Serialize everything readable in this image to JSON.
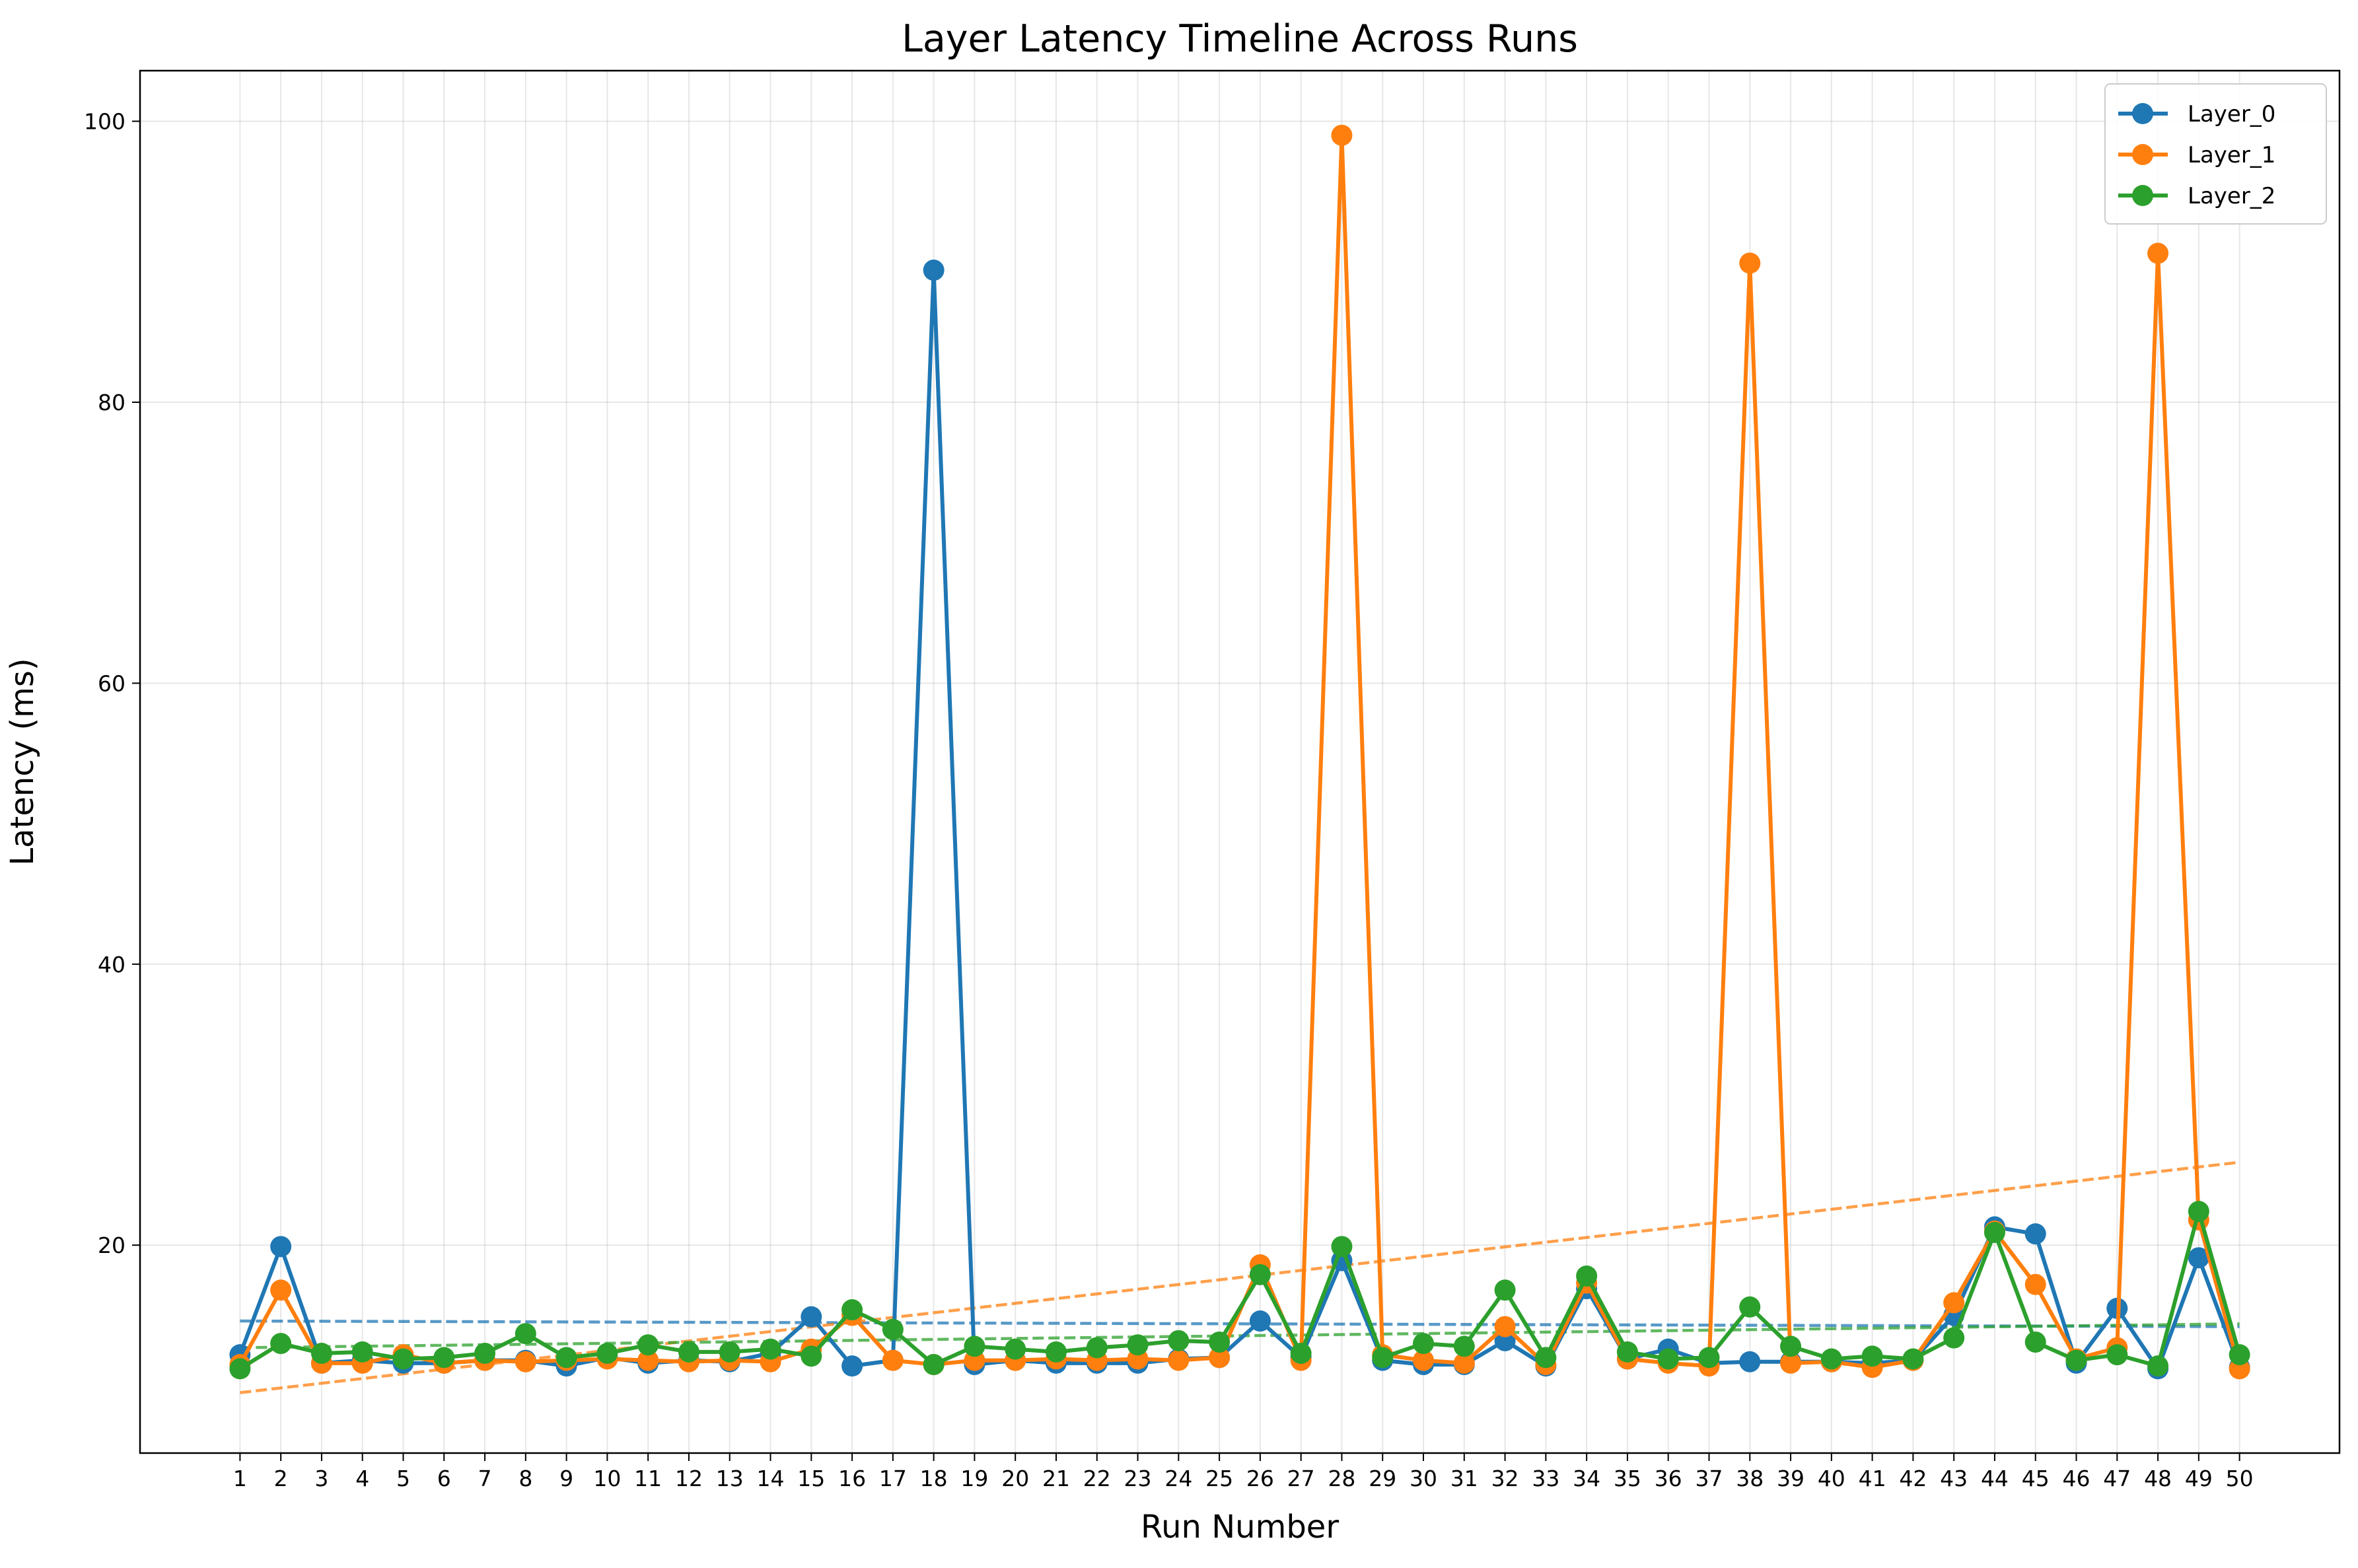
{
  "chart_data": {
    "type": "line",
    "title": "Layer Latency Timeline Across Runs",
    "xlabel": "Run Number",
    "ylabel": "Latency (ms)",
    "x": [
      1,
      2,
      3,
      4,
      5,
      6,
      7,
      8,
      9,
      10,
      11,
      12,
      13,
      14,
      15,
      16,
      17,
      18,
      19,
      20,
      21,
      22,
      23,
      24,
      25,
      26,
      27,
      28,
      29,
      30,
      31,
      32,
      33,
      34,
      35,
      36,
      37,
      38,
      39,
      40,
      41,
      42,
      43,
      44,
      45,
      46,
      47,
      48,
      49,
      50
    ],
    "xlim": [
      -1.45,
      52.45
    ],
    "ylim": [
      5.2,
      103.6
    ],
    "yticks": [
      20,
      40,
      60,
      80,
      100
    ],
    "grid": true,
    "legend_position": "top-right",
    "series": [
      {
        "name": "Layer_0",
        "color": "#1f77b4",
        "values": [
          12.2,
          19.9,
          11.6,
          11.8,
          11.6,
          11.6,
          11.8,
          11.8,
          11.4,
          12.0,
          11.6,
          11.8,
          11.7,
          12.3,
          14.9,
          11.4,
          11.8,
          89.4,
          11.5,
          11.8,
          11.6,
          11.6,
          11.6,
          11.9,
          12.0,
          14.6,
          12.0,
          18.9,
          11.8,
          11.5,
          11.5,
          13.2,
          11.4,
          16.9,
          11.9,
          12.6,
          11.6,
          11.7,
          11.7,
          11.7,
          11.6,
          11.8,
          15.0,
          21.3,
          20.8,
          11.6,
          15.5,
          11.2,
          19.1,
          11.3
        ],
        "trend": [
          14.6,
          14.2
        ]
      },
      {
        "name": "Layer_1",
        "color": "#ff7f0e",
        "values": [
          11.5,
          16.8,
          11.6,
          11.6,
          12.2,
          11.6,
          11.8,
          11.7,
          11.8,
          11.9,
          11.8,
          11.7,
          11.8,
          11.7,
          12.6,
          15.0,
          11.8,
          11.5,
          11.8,
          11.8,
          11.9,
          11.8,
          11.9,
          11.8,
          12.0,
          18.6,
          11.8,
          99.0,
          12.2,
          11.8,
          11.6,
          14.2,
          11.5,
          17.3,
          11.9,
          11.6,
          11.4,
          89.9,
          11.6,
          11.7,
          11.3,
          11.8,
          15.9,
          21.0,
          17.2,
          11.9,
          12.7,
          90.6,
          21.8,
          11.2
        ],
        "trend": [
          9.5,
          25.9
        ]
      },
      {
        "name": "Layer_2",
        "color": "#2ca02c",
        "values": [
          11.2,
          13.0,
          12.3,
          12.4,
          11.9,
          12.0,
          12.3,
          13.7,
          12.0,
          12.3,
          12.9,
          12.4,
          12.4,
          12.6,
          12.1,
          15.4,
          14.0,
          11.5,
          12.8,
          12.6,
          12.4,
          12.7,
          12.9,
          13.2,
          13.1,
          17.9,
          12.3,
          19.9,
          12.0,
          13.0,
          12.8,
          16.8,
          12.0,
          17.8,
          12.4,
          11.9,
          12.0,
          15.6,
          12.8,
          11.9,
          12.1,
          11.9,
          13.4,
          20.9,
          13.1,
          11.8,
          12.2,
          11.4,
          22.4,
          12.2
        ],
        "trend": [
          12.7,
          14.4
        ]
      }
    ]
  }
}
